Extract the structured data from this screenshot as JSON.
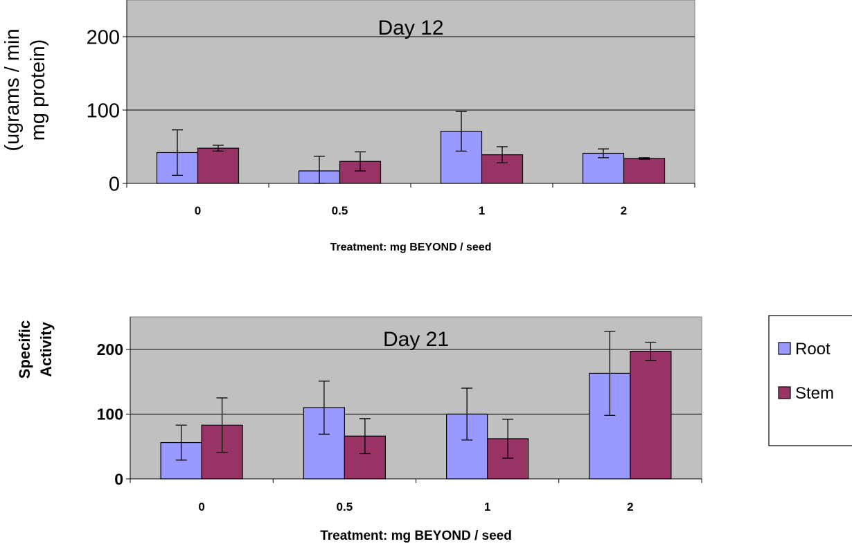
{
  "chart_data": [
    {
      "type": "bar",
      "title": "Day 12",
      "xlabel": "Treatment: mg BEYOND / seed",
      "ylabel": "(ugrams / min mg protein)",
      "ylabel_lines": [
        "(ugrams /  min",
        "mg protein)"
      ],
      "categories": [
        "0",
        "0.5",
        "1",
        "2"
      ],
      "ylim": [
        0,
        250
      ],
      "yticks": [
        0,
        100,
        200
      ],
      "grid": true,
      "series": [
        {
          "name": "Root",
          "color": "#9999ff",
          "values": [
            42,
            17,
            71,
            41
          ],
          "error": [
            31,
            20,
            27,
            6
          ]
        },
        {
          "name": "Stem",
          "color": "#993366",
          "values": [
            48,
            30,
            39,
            34
          ],
          "error": [
            4,
            13,
            11,
            1
          ]
        }
      ]
    },
    {
      "type": "bar",
      "title": "Day 21",
      "xlabel": "Treatment: mg BEYOND / seed",
      "ylabel": "Specific Activity",
      "ylabel_lines": [
        "Specific",
        "Activity"
      ],
      "categories": [
        "0",
        "0.5",
        "1",
        "2"
      ],
      "ylim": [
        0,
        250
      ],
      "yticks": [
        0,
        100,
        200
      ],
      "grid": true,
      "legend_position": "right",
      "series": [
        {
          "name": "Root",
          "color": "#9999ff",
          "values": [
            56,
            110,
            100,
            163
          ],
          "error": [
            27,
            41,
            40,
            65
          ]
        },
        {
          "name": "Stem",
          "color": "#993366",
          "values": [
            83,
            66,
            62,
            197
          ],
          "error": [
            42,
            27,
            30,
            14
          ]
        }
      ]
    }
  ],
  "colors": {
    "plot_background": "#c0c0c0",
    "gridline": "#000000"
  }
}
